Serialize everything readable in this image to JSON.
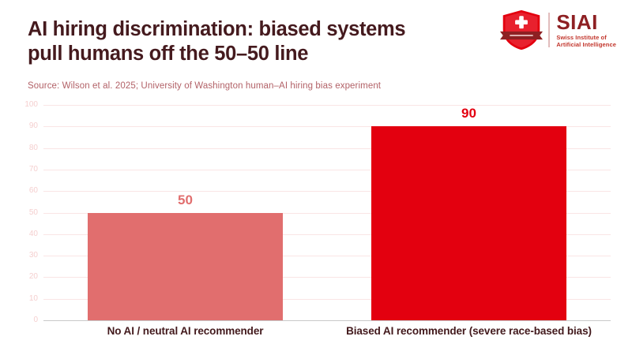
{
  "header": {
    "title_line1": "AI hiring discrimination: biased systems",
    "title_line2": "pull humans off the 50–50 line",
    "source": "Source: Wilson et al. 2025; University of Washington human–AI hiring bias experiment"
  },
  "logo": {
    "name": "SIAI",
    "subtitle_line1": "Swiss Institute of",
    "subtitle_line2": "Artificial Intelligence",
    "shield_icon": "swiss-shield-icon"
  },
  "colors": {
    "title": "#451a1e",
    "source": "#b26167",
    "category_label": "#42191c",
    "gridline": "#fae5e5",
    "axis_line": "#c9c9c9",
    "tick_label": "#f5cfcf",
    "logo_dark_red": "#8e2023",
    "logo_red": "#c2352b",
    "swiss_red": "#e3000f"
  },
  "chart_data": {
    "type": "bar",
    "categories": [
      "No AI / neutral AI recommender",
      "Biased AI recommender (severe race-based bias)"
    ],
    "values": [
      50,
      90
    ],
    "bar_colors": [
      "#e16e6e",
      "#e3000f"
    ],
    "label_colors": [
      "#e16e6e",
      "#e3000f"
    ],
    "title": "",
    "xlabel": "",
    "ylabel": "",
    "ylim": [
      0,
      100
    ],
    "ytick_interval": 10,
    "grid": true,
    "legend": false,
    "bar_slot_fraction": 0.69
  }
}
